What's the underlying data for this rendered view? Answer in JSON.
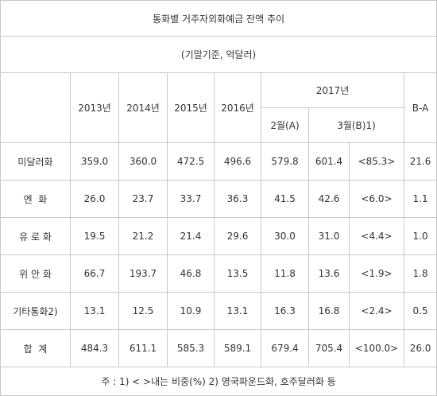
{
  "title": "통화별 거주자외화예금 잔액 추이",
  "unit": "(기말기준, 억달러)",
  "headers": {
    "years": [
      "2013년",
      "2014년",
      "2015년",
      "2016년"
    ],
    "year_2017": "2017년",
    "feb": "2월(A)",
    "mar": "3월(B)1)",
    "diff": "B-A"
  },
  "rows": [
    {
      "label": "미달러화",
      "values": [
        "359.0",
        "360.0",
        "472.5",
        "496.6",
        "579.8",
        "601.4",
        "<85.3>",
        "21.6"
      ]
    },
    {
      "label": "엔  화",
      "values": [
        "26.0",
        "23.7",
        "33.7",
        "36.3",
        "41.5",
        "42.6",
        "<6.0>",
        "1.1"
      ]
    },
    {
      "label": "유 로 화",
      "values": [
        "19.5",
        "21.2",
        "21.4",
        "29.6",
        "30.0",
        "31.0",
        "<4.4>",
        "1.0"
      ]
    },
    {
      "label": "위 안 화",
      "values": [
        "66.7",
        "193.7",
        "46.8",
        "13.5",
        "11.8",
        "13.6",
        "<1.9>",
        "1.8"
      ]
    },
    {
      "label": "기타통화2)",
      "values": [
        "13.1",
        "12.5",
        "10.9",
        "13.1",
        "16.3",
        "16.8",
        "<2.4>",
        "0.5"
      ]
    },
    {
      "label": "합  계",
      "values": [
        "484.3",
        "611.1",
        "585.3",
        "589.1",
        "679.4",
        "705.4",
        "<100.0>",
        "26.0"
      ]
    }
  ],
  "footnote": "주 : 1) < >내는 비중(%) 2) 영국파운드화, 호주달러화 등"
}
